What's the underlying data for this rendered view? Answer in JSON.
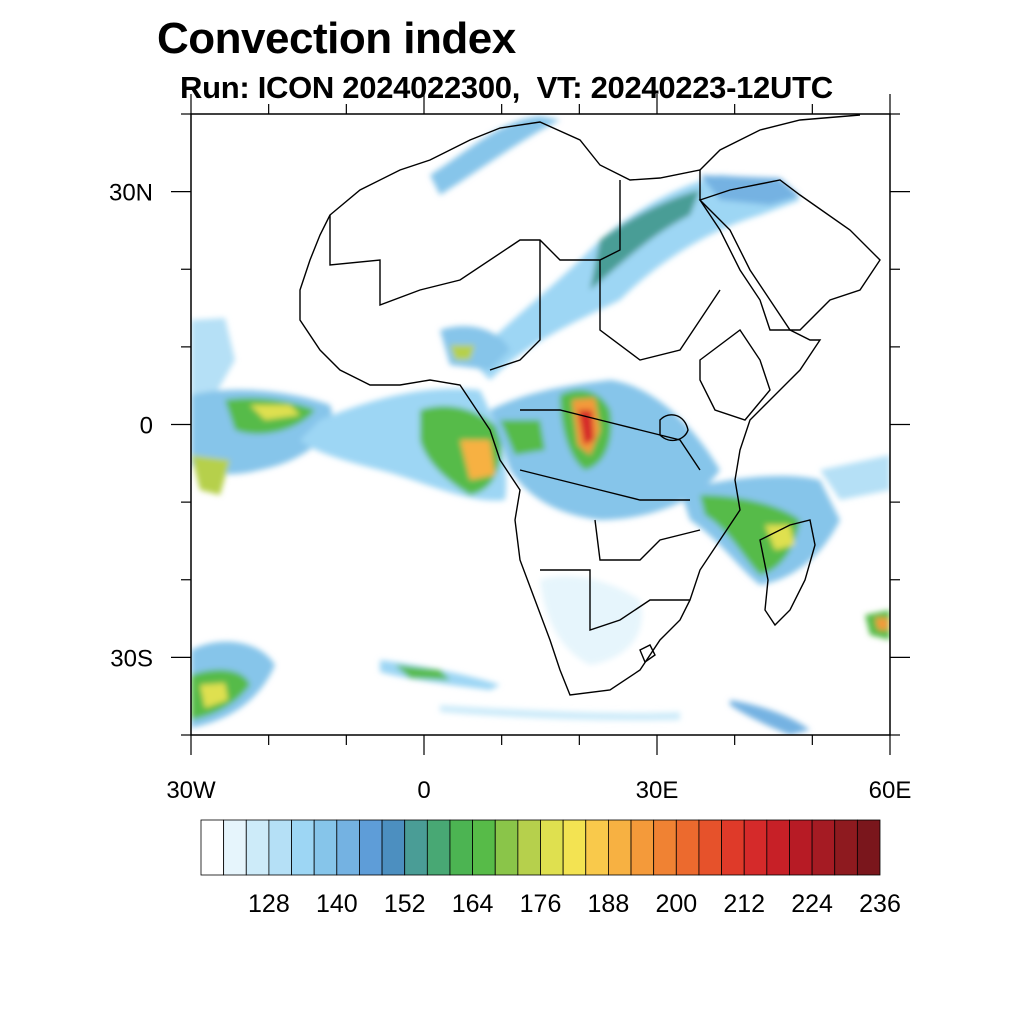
{
  "title": "Convection index",
  "subtitle": "Run: ICON 2024022300,  VT: 20240223-12UTC",
  "map": {
    "region": "Africa",
    "lon_range": [
      -30,
      60
    ],
    "lat_range": [
      -40,
      40
    ],
    "lat_ticks": [
      {
        "lat": 30,
        "label": "30N"
      },
      {
        "lat": 0,
        "label": "0"
      },
      {
        "lat": -30,
        "label": "30S"
      }
    ],
    "lon_ticks": [
      {
        "lon": -30,
        "label": "30W"
      },
      {
        "lon": 0,
        "label": "0"
      },
      {
        "lon": 30,
        "label": "30E"
      },
      {
        "lon": 60,
        "label": "60E"
      }
    ]
  },
  "colorbar": {
    "min": 116,
    "max": 240,
    "step": 4,
    "labeled_values": [
      "128",
      "140",
      "152",
      "164",
      "176",
      "188",
      "200",
      "212",
      "224",
      "236"
    ],
    "colors": [
      "#ffffff",
      "#e6f5fc",
      "#cdebf9",
      "#b5e0f6",
      "#9dd6f4",
      "#86c5ea",
      "#74b2e2",
      "#5e9dd8",
      "#4c8fc0",
      "#4a9d96",
      "#48a874",
      "#4cb452",
      "#57bb48",
      "#8ac549",
      "#b6d04c",
      "#dfe04f",
      "#f3e352",
      "#f9c94b",
      "#f7b142",
      "#f49a3a",
      "#f08233",
      "#ec6a2e",
      "#e6522b",
      "#df3a29",
      "#d52a2a",
      "#c72027",
      "#b71b25",
      "#a51b23",
      "#8e1a1f",
      "#7a161c"
    ]
  }
}
